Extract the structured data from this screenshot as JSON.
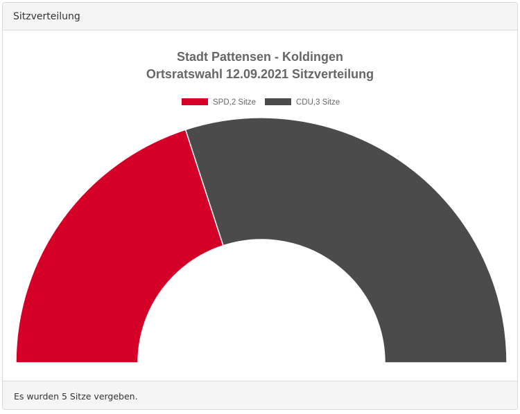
{
  "panel": {
    "header_title": "Sitzverteilung",
    "footer_text": "Es wurden 5 Sitze vergeben."
  },
  "chart_data": {
    "type": "pie",
    "variant": "half-doughnut",
    "title": [
      "Stadt Pattensen - Koldingen",
      "Ortsratswahl 12.09.2021 Sitzverteilung"
    ],
    "legend_position": "top",
    "series": [
      {
        "name": "SPD",
        "legend_label": "SPD,2 Sitze",
        "value": 2,
        "color": "#d50028"
      },
      {
        "name": "CDU",
        "legend_label": "CDU,3 Sitze",
        "value": 3,
        "color": "#4b4b4b"
      }
    ]
  }
}
